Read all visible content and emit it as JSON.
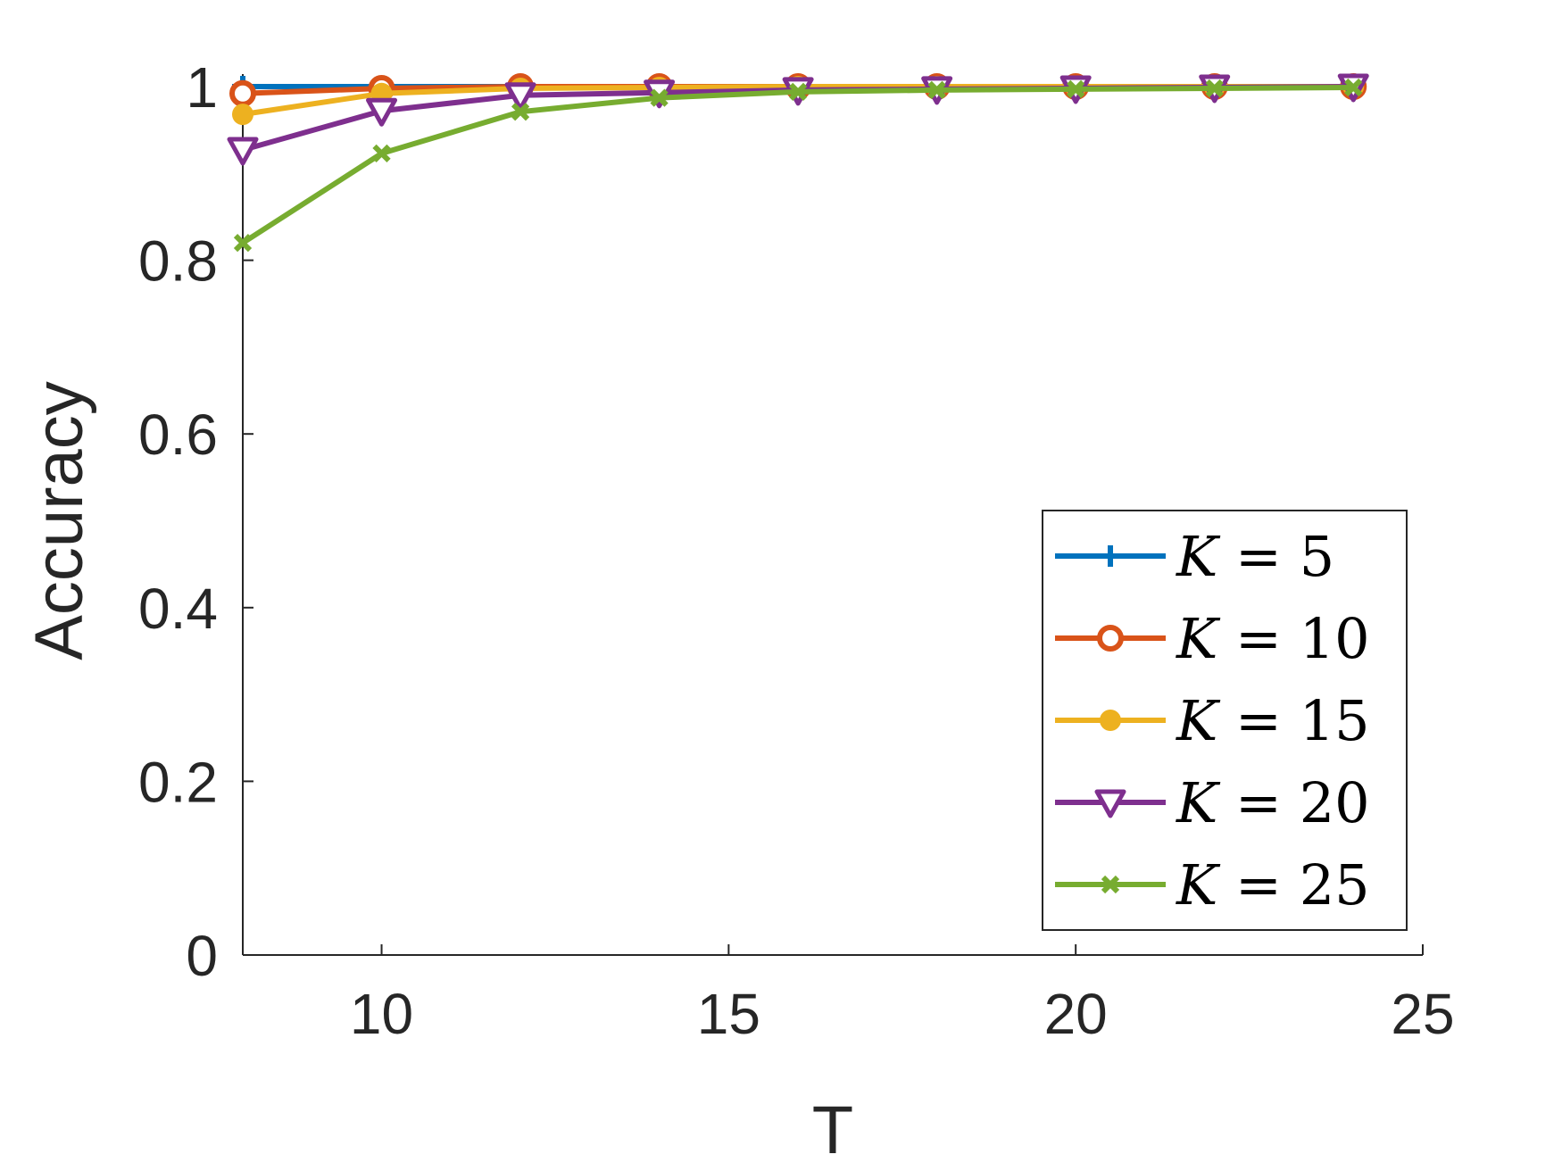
{
  "chart_data": {
    "type": "line",
    "title": "",
    "xlabel": "T",
    "ylabel": "Accuracy",
    "xlim": [
      8,
      25
    ],
    "ylim": [
      0,
      1
    ],
    "xticks": [
      10,
      15,
      20,
      25
    ],
    "yticks": [
      0,
      0.2,
      0.4,
      0.6,
      0.8,
      1
    ],
    "xtick_labels": [
      "10",
      "15",
      "20",
      "25"
    ],
    "ytick_labels": [
      "0",
      "0.2",
      "0.4",
      "0.6",
      "0.8",
      "1"
    ],
    "x": [
      8,
      10,
      12,
      14,
      16,
      18,
      20,
      22,
      24
    ],
    "grid": false,
    "legend_position": "bottom-right",
    "series": [
      {
        "name": "K = 5",
        "legend_var": "K",
        "legend_rest": " = 5",
        "color": "#0072BD",
        "marker": "plus",
        "values": [
          1.0,
          1.0,
          1.0,
          1.0,
          1.0,
          1.0,
          1.0,
          1.0,
          1.0
        ]
      },
      {
        "name": "K = 10",
        "legend_var": "K",
        "legend_rest": " = 10",
        "color": "#D95319",
        "marker": "circle",
        "values": [
          0.992,
          0.998,
          1.0,
          1.0,
          1.0,
          1.0,
          1.0,
          1.0,
          1.0
        ]
      },
      {
        "name": "K = 15",
        "legend_var": "K",
        "legend_rest": " = 15",
        "color": "#EDB120",
        "marker": "dot",
        "values": [
          0.968,
          0.992,
          0.998,
          0.999,
          1.0,
          1.0,
          1.0,
          1.0,
          1.0
        ]
      },
      {
        "name": "K = 20",
        "legend_var": "K",
        "legend_rest": " = 20",
        "color": "#7E2F8E",
        "marker": "triangle-down",
        "values": [
          0.927,
          0.972,
          0.99,
          0.993,
          0.996,
          0.997,
          0.998,
          0.999,
          1.0
        ]
      },
      {
        "name": "K = 25",
        "legend_var": "K",
        "legend_rest": " = 25",
        "color": "#77AC30",
        "marker": "x",
        "values": [
          0.82,
          0.923,
          0.971,
          0.987,
          0.994,
          0.996,
          0.997,
          0.998,
          0.999
        ]
      }
    ]
  }
}
